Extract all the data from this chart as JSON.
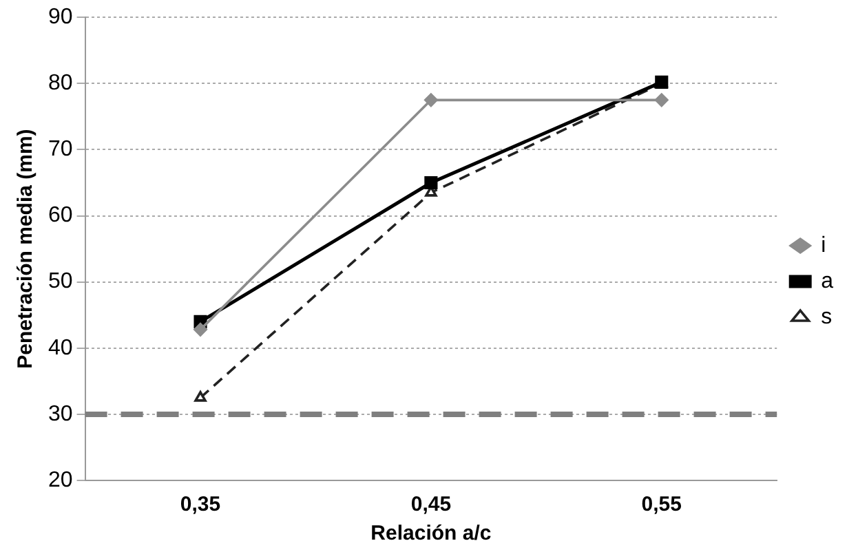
{
  "chart_data": {
    "type": "line",
    "xlabel": "Relación a/c",
    "ylabel": "Penetración media (mm)",
    "categories": [
      "0,35",
      "0,45",
      "0,55"
    ],
    "series": [
      {
        "name": "i",
        "color": "#8c8c8c",
        "values": [
          42.8,
          77.5,
          77.5
        ],
        "marker": "diamond",
        "line_style": "solid"
      },
      {
        "name": "a",
        "color": "#000000",
        "values": [
          44,
          65,
          80.2
        ],
        "marker": "square",
        "line_style": "solid"
      },
      {
        "name": "s",
        "color": "#222222",
        "values": [
          32.5,
          63.5,
          80
        ],
        "marker": "triangle",
        "line_style": "dashed"
      }
    ],
    "ylim": [
      20,
      90
    ],
    "yticks": [
      20,
      30,
      40,
      50,
      60,
      70,
      80,
      90
    ],
    "grid": "y",
    "legend": "right",
    "ref_lines": [
      {
        "axis": "y",
        "value": 30,
        "color": "#7f7f7f",
        "line_style": "dashed"
      }
    ]
  }
}
